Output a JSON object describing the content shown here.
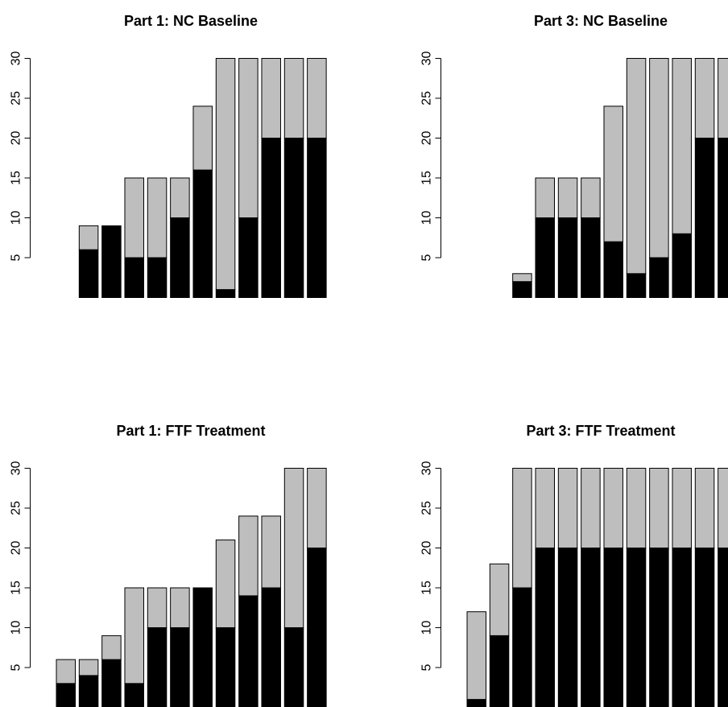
{
  "chart_data": [
    {
      "type": "bar",
      "title": "Part 1: NC Baseline",
      "stacked": true,
      "ylim": [
        0,
        30
      ],
      "yticks": [
        5,
        10,
        15,
        20,
        25,
        30
      ],
      "series": [
        {
          "color": "#000000",
          "values": [
            0,
            6,
            9,
            5,
            5,
            10,
            16,
            1,
            10,
            20,
            20,
            20
          ]
        },
        {
          "color": "#bebebe",
          "values": [
            0,
            3,
            0,
            10,
            10,
            5,
            8,
            29,
            20,
            10,
            10,
            10
          ]
        }
      ]
    },
    {
      "type": "bar",
      "title": "Part 3: NC Baseline",
      "stacked": true,
      "ylim": [
        0,
        30
      ],
      "yticks": [
        5,
        10,
        15,
        20,
        25,
        30
      ],
      "series": [
        {
          "color": "#000000",
          "values": [
            0,
            0,
            2,
            10,
            10,
            10,
            7,
            3,
            5,
            8,
            20,
            20
          ]
        },
        {
          "color": "#bebebe",
          "values": [
            0,
            0,
            1,
            5,
            5,
            5,
            17,
            27,
            25,
            22,
            10,
            10
          ]
        }
      ]
    },
    {
      "type": "bar",
      "title": "Part 1: FTF Treatment",
      "stacked": true,
      "ylim": [
        0,
        30
      ],
      "yticks": [
        5,
        10,
        15,
        20,
        25,
        30
      ],
      "series": [
        {
          "color": "#000000",
          "values": [
            3,
            4,
            6,
            3,
            10,
            10,
            15,
            10,
            14,
            15,
            10,
            20
          ]
        },
        {
          "color": "#bebebe",
          "values": [
            3,
            2,
            3,
            12,
            5,
            5,
            0,
            11,
            10,
            9,
            20,
            10
          ]
        }
      ]
    },
    {
      "type": "bar",
      "title": "Part 3: FTF Treatment",
      "stacked": true,
      "ylim": [
        0,
        30
      ],
      "yticks": [
        5,
        10,
        15,
        20,
        25,
        30
      ],
      "series": [
        {
          "color": "#000000",
          "values": [
            1,
            9,
            15,
            20,
            20,
            20,
            20,
            20,
            20,
            20,
            20,
            20
          ]
        },
        {
          "color": "#bebebe",
          "values": [
            11,
            9,
            15,
            10,
            10,
            10,
            10,
            10,
            10,
            10,
            10,
            10
          ]
        }
      ]
    }
  ]
}
